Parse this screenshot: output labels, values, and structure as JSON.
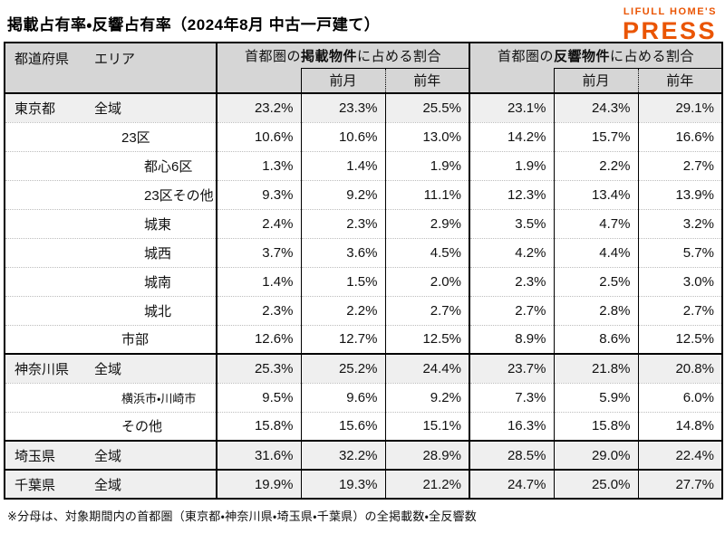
{
  "logo": {
    "top": "LIFULL HOME'S",
    "main": "PRESS"
  },
  "colors": {
    "brand_orange": "#ea5504",
    "header_bg": "#d6d6d6",
    "summary_row_bg": "#efefef",
    "row_sep": "#bdbdbd"
  },
  "chart_data": {
    "type": "table",
    "title": "掲載占有率・反響占有率（2024年8月 中古一戸建て）",
    "header": {
      "corner": {
        "prefecture": "都道府県",
        "area": "エリア"
      },
      "groups": [
        {
          "prefix": "首都圏の",
          "emphasis": "掲載物件",
          "suffix": "に占める割合",
          "subcolumns": [
            "",
            "前月",
            "前年"
          ]
        },
        {
          "prefix": "首都圏の",
          "emphasis": "反響物件",
          "suffix": "に占める割合",
          "subcolumns": [
            "",
            "前月",
            "前年"
          ]
        }
      ],
      "value_columns": [
        "掲載割合",
        "掲載割合 前月",
        "掲載割合 前年",
        "反響割合",
        "反響割合 前月",
        "反響割合 前年"
      ]
    },
    "rows": [
      {
        "pref": "東京都",
        "area": "全域",
        "indent": 1,
        "summary": true,
        "section": true,
        "small": false,
        "values": [
          "23.2%",
          "23.3%",
          "25.5%",
          "23.1%",
          "24.3%",
          "29.1%"
        ]
      },
      {
        "pref": "",
        "area": "23区",
        "indent": 2,
        "summary": false,
        "section": false,
        "small": false,
        "values": [
          "10.6%",
          "10.6%",
          "13.0%",
          "14.2%",
          "15.7%",
          "16.6%"
        ]
      },
      {
        "pref": "",
        "area": "都心6区",
        "indent": 3,
        "summary": false,
        "section": false,
        "small": false,
        "values": [
          "1.3%",
          "1.4%",
          "1.9%",
          "1.9%",
          "2.2%",
          "2.7%"
        ]
      },
      {
        "pref": "",
        "area": "23区その他",
        "indent": 3,
        "summary": false,
        "section": false,
        "small": false,
        "values": [
          "9.3%",
          "9.2%",
          "11.1%",
          "12.3%",
          "13.4%",
          "13.9%"
        ]
      },
      {
        "pref": "",
        "area": "城東",
        "indent": 3,
        "summary": false,
        "section": false,
        "small": false,
        "values": [
          "2.4%",
          "2.3%",
          "2.9%",
          "3.5%",
          "4.7%",
          "3.2%"
        ]
      },
      {
        "pref": "",
        "area": "城西",
        "indent": 3,
        "summary": false,
        "section": false,
        "small": false,
        "values": [
          "3.7%",
          "3.6%",
          "4.5%",
          "4.2%",
          "4.4%",
          "5.7%"
        ]
      },
      {
        "pref": "",
        "area": "城南",
        "indent": 3,
        "summary": false,
        "section": false,
        "small": false,
        "values": [
          "1.4%",
          "1.5%",
          "2.0%",
          "2.3%",
          "2.5%",
          "3.0%"
        ]
      },
      {
        "pref": "",
        "area": "城北",
        "indent": 3,
        "summary": false,
        "section": false,
        "small": false,
        "values": [
          "2.3%",
          "2.2%",
          "2.7%",
          "2.7%",
          "2.8%",
          "2.7%"
        ]
      },
      {
        "pref": "",
        "area": "市部",
        "indent": 2,
        "summary": false,
        "section": false,
        "small": false,
        "values": [
          "12.6%",
          "12.7%",
          "12.5%",
          "8.9%",
          "8.6%",
          "12.5%"
        ]
      },
      {
        "pref": "神奈川県",
        "area": "全域",
        "indent": 1,
        "summary": true,
        "section": true,
        "small": false,
        "values": [
          "25.3%",
          "25.2%",
          "24.4%",
          "23.7%",
          "21.8%",
          "20.8%"
        ]
      },
      {
        "pref": "",
        "area": "横浜市・川崎市",
        "indent": 2,
        "summary": false,
        "section": false,
        "small": true,
        "values": [
          "9.5%",
          "9.6%",
          "9.2%",
          "7.3%",
          "5.9%",
          "6.0%"
        ]
      },
      {
        "pref": "",
        "area": "その他",
        "indent": 2,
        "summary": false,
        "section": false,
        "small": false,
        "values": [
          "15.8%",
          "15.6%",
          "15.1%",
          "16.3%",
          "15.8%",
          "14.8%"
        ]
      },
      {
        "pref": "埼玉県",
        "area": "全域",
        "indent": 1,
        "summary": true,
        "section": true,
        "small": false,
        "values": [
          "31.6%",
          "32.2%",
          "28.9%",
          "28.5%",
          "29.0%",
          "22.4%"
        ]
      },
      {
        "pref": "千葉県",
        "area": "全域",
        "indent": 1,
        "summary": true,
        "section": true,
        "small": false,
        "values": [
          "19.9%",
          "19.3%",
          "21.2%",
          "24.7%",
          "25.0%",
          "27.7%"
        ]
      }
    ],
    "footnote": "※分母は、対象期間内の首都圏（東京都・神奈川県・埼玉県・千葉県）の全掲載数・全反響数"
  }
}
